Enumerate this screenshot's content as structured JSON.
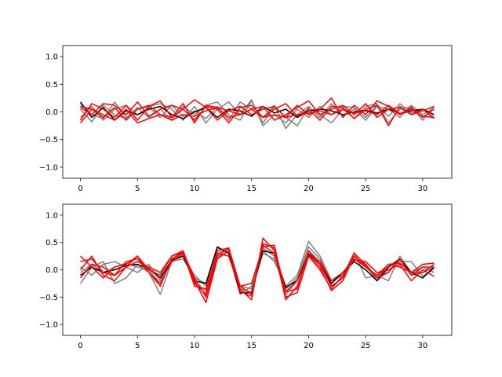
{
  "chart_data": [
    {
      "type": "line",
      "title": "",
      "xlabel": "",
      "ylabel": "",
      "xlim": [
        -1.55,
        32.55
      ],
      "ylim": [
        -1.2,
        1.2
      ],
      "xticks": [
        0,
        5,
        10,
        15,
        20,
        25,
        30
      ],
      "yticks": [
        -1.0,
        -0.5,
        0.0,
        0.5,
        1.0
      ],
      "xtick_labels": [
        "0",
        "5",
        "10",
        "15",
        "20",
        "25",
        "30"
      ],
      "ytick_labels": [
        "−1.0",
        "−0.5",
        "0.0",
        "0.5",
        "1.0"
      ],
      "grid": false,
      "x": [
        0,
        1,
        2,
        3,
        4,
        5,
        6,
        7,
        8,
        9,
        10,
        11,
        12,
        13,
        14,
        15,
        16,
        17,
        18,
        19,
        20,
        21,
        22,
        23,
        24,
        25,
        26,
        27,
        28,
        29,
        30,
        31
      ],
      "series": [
        {
          "color": "#808080",
          "values": [
            0.15,
            -0.05,
            -0.12,
            0.18,
            -0.1,
            0.05,
            0.1,
            0.15,
            0.05,
            -0.15,
            0.1,
            -0.2,
            0.05,
            0.18,
            -0.05,
            0.22,
            -0.25,
            -0.05,
            -0.2,
            0.05,
            -0.1,
            0.1,
            -0.05,
            0.1,
            0.08,
            -0.1,
            0.12,
            -0.08,
            0.15,
            -0.02,
            0.05,
            -0.1
          ]
        },
        {
          "color": "#808080",
          "values": [
            -0.1,
            0.1,
            -0.15,
            0.05,
            0.12,
            -0.05,
            0.08,
            -0.1,
            0.12,
            -0.08,
            0.02,
            -0.12,
            0.1,
            -0.15,
            0.18,
            0.05,
            -0.1,
            0.12,
            -0.3,
            -0.05,
            0.1,
            -0.1,
            0.15,
            -0.08,
            0.05,
            -0.15,
            0.1,
            0.05,
            -0.1,
            0.12,
            -0.05,
            0.08
          ]
        },
        {
          "color": "#808080",
          "values": [
            0.05,
            -0.18,
            0.12,
            -0.05,
            -0.12,
            0.08,
            -0.1,
            0.05,
            -0.15,
            0.1,
            -0.05,
            0.12,
            0.18,
            -0.05,
            -0.15,
            0.2,
            -0.2,
            0.1,
            -0.1,
            -0.25,
            0.08,
            -0.05,
            -0.2,
            0.05,
            -0.12,
            0.1,
            0.15,
            -0.2,
            0.05,
            0.1,
            -0.15,
            0.1
          ]
        },
        {
          "color": "#000000",
          "values": [
            0.18,
            -0.1,
            0.08,
            -0.15,
            0.02,
            -0.05,
            0.05,
            0.1,
            -0.05,
            -0.12,
            0.0,
            0.08,
            -0.1,
            0.05,
            0.02,
            -0.08,
            0.1,
            -0.02,
            0.05,
            -0.1,
            0.02,
            0.05,
            0.02,
            -0.05,
            0.0,
            0.03,
            -0.02,
            0.05,
            -0.03,
            0.02,
            0.05,
            -0.05
          ]
        },
        {
          "color": "#ff0000",
          "values": [
            -0.15,
            0.15,
            0.05,
            -0.1,
            0.12,
            -0.15,
            0.1,
            0.2,
            -0.1,
            0.05,
            0.22,
            0.08,
            -0.15,
            0.02,
            0.1,
            -0.05,
            0.05,
            0.1,
            -0.1,
            0.12,
            -0.05,
            0.05,
            0.25,
            -0.1,
            0.12,
            -0.05,
            0.2,
            0.1,
            -0.05,
            0.08,
            -0.1,
            0.05
          ]
        },
        {
          "color": "#ff0000",
          "values": [
            0.08,
            -0.05,
            0.15,
            0.12,
            -0.05,
            0.18,
            -0.08,
            0.05,
            0.12,
            0.05,
            -0.15,
            0.1,
            0.05,
            -0.2,
            0.08,
            0.12,
            -0.1,
            0.05,
            0.15,
            -0.08,
            0.05,
            -0.15,
            0.1,
            0.08,
            -0.12,
            0.05,
            0.12,
            -0.25,
            0.1,
            -0.05,
            0.05,
            -0.12
          ]
        },
        {
          "color": "#ff0000",
          "values": [
            -0.2,
            0.05,
            -0.1,
            0.08,
            -0.15,
            0.05,
            0.12,
            -0.05,
            -0.1,
            0.15,
            -0.2,
            0.12,
            0.08,
            -0.1,
            -0.05,
            0.05,
            0.1,
            -0.15,
            -0.05,
            0.08,
            0.2,
            -0.05,
            0.05,
            0.12,
            -0.05,
            0.15,
            -0.1,
            0.05,
            0.08,
            -0.05,
            0.02,
            0.1
          ]
        },
        {
          "color": "#ff0000",
          "values": [
            0.1,
            0.05,
            -0.05,
            -0.15,
            0.05,
            -0.2,
            -0.12,
            -0.05,
            -0.15,
            -0.05,
            -0.08,
            0.02,
            0.08,
            0.02,
            -0.05,
            0.05,
            -0.1,
            -0.05,
            -0.1,
            -0.05,
            -0.02,
            0.02,
            -0.05,
            0.05,
            -0.02,
            0.02,
            -0.05,
            0.12,
            -0.03,
            0.05,
            -0.08,
            -0.1
          ]
        }
      ]
    },
    {
      "type": "line",
      "title": "",
      "xlabel": "",
      "ylabel": "",
      "xlim": [
        -1.55,
        32.55
      ],
      "ylim": [
        -1.2,
        1.2
      ],
      "xticks": [
        0,
        5,
        10,
        15,
        20,
        25,
        30
      ],
      "yticks": [
        -1.0,
        -0.5,
        0.0,
        0.5,
        1.0
      ],
      "xtick_labels": [
        "0",
        "5",
        "10",
        "15",
        "20",
        "25",
        "30"
      ],
      "ytick_labels": [
        "−1.0",
        "−0.5",
        "0.0",
        "0.5",
        "1.0"
      ],
      "grid": false,
      "x": [
        0,
        1,
        2,
        3,
        4,
        5,
        6,
        7,
        8,
        9,
        10,
        11,
        12,
        13,
        14,
        15,
        16,
        17,
        18,
        19,
        20,
        21,
        22,
        23,
        24,
        25,
        26,
        27,
        28,
        29,
        30,
        31
      ],
      "series": [
        {
          "color": "#808080",
          "values": [
            -0.25,
            0.05,
            0.15,
            -0.25,
            -0.15,
            0.1,
            -0.05,
            -0.45,
            0.15,
            0.25,
            -0.1,
            -0.3,
            0.4,
            0.3,
            -0.45,
            -0.3,
            0.35,
            0.15,
            -0.3,
            -0.1,
            0.52,
            0.25,
            -0.2,
            -0.1,
            0.32,
            -0.15,
            -0.1,
            -0.2,
            0.25,
            -0.05,
            0.05,
            -0.05
          ]
        },
        {
          "color": "#808080",
          "values": [
            0.05,
            -0.1,
            0.1,
            0.15,
            0.05,
            -0.05,
            0.1,
            -0.2,
            0.2,
            0.28,
            -0.2,
            -0.4,
            0.3,
            0.38,
            -0.35,
            -0.4,
            0.4,
            0.25,
            -0.45,
            -0.2,
            0.35,
            0.15,
            -0.3,
            -0.15,
            0.25,
            0.05,
            -0.15,
            0.05,
            0.18,
            -0.1,
            -0.05,
            0.05
          ]
        },
        {
          "color": "#808080",
          "values": [
            -0.05,
            0.1,
            -0.05,
            0.05,
            0.12,
            0.05,
            0.0,
            -0.25,
            0.15,
            0.2,
            -0.15,
            -0.25,
            0.22,
            0.35,
            -0.3,
            -0.35,
            0.3,
            0.2,
            -0.35,
            -0.15,
            0.42,
            0.2,
            -0.25,
            -0.05,
            0.2,
            0.08,
            -0.2,
            0.0,
            0.15,
            0.15,
            -0.12,
            0.02
          ]
        },
        {
          "color": "#000000",
          "values": [
            -0.1,
            0.05,
            -0.05,
            0.0,
            0.08,
            0.1,
            0.02,
            -0.15,
            0.18,
            0.25,
            -0.2,
            -0.25,
            0.42,
            0.3,
            -0.42,
            -0.42,
            0.35,
            0.3,
            -0.32,
            -0.2,
            0.3,
            0.1,
            -0.25,
            -0.05,
            0.15,
            0.0,
            -0.2,
            0.05,
            0.2,
            -0.05,
            -0.15,
            0.05
          ]
        },
        {
          "color": "#ff0000",
          "values": [
            0.25,
            0.05,
            -0.15,
            0.05,
            0.1,
            0.25,
            -0.05,
            -0.3,
            0.2,
            0.32,
            -0.3,
            -0.35,
            0.3,
            0.25,
            -0.35,
            -0.55,
            0.58,
            0.35,
            -0.55,
            -0.3,
            0.28,
            0.05,
            -0.38,
            -0.2,
            0.25,
            0.08,
            -0.15,
            0.1,
            0.12,
            -0.05,
            0.1,
            0.12
          ]
        },
        {
          "color": "#ff0000",
          "values": [
            0.15,
            0.2,
            -0.05,
            -0.1,
            0.05,
            0.25,
            0.0,
            -0.1,
            0.25,
            0.35,
            -0.2,
            -0.6,
            0.2,
            0.35,
            -0.3,
            -0.25,
            0.42,
            0.45,
            -0.5,
            -0.42,
            0.25,
            0.0,
            -0.35,
            -0.1,
            0.18,
            0.15,
            -0.05,
            0.0,
            0.1,
            -0.2,
            0.0,
            -0.12
          ]
        },
        {
          "color": "#ff0000",
          "values": [
            -0.15,
            0.1,
            0.05,
            -0.1,
            0.15,
            0.2,
            -0.05,
            -0.25,
            0.15,
            0.3,
            -0.25,
            -0.45,
            0.35,
            0.4,
            -0.4,
            -0.48,
            0.48,
            0.4,
            -0.4,
            -0.35,
            0.35,
            0.1,
            -0.3,
            -0.15,
            0.3,
            0.1,
            -0.15,
            -0.05,
            0.2,
            -0.1,
            0.05,
            0.05
          ]
        },
        {
          "color": "#ff0000",
          "values": [
            0.0,
            0.25,
            -0.1,
            -0.2,
            0.05,
            0.15,
            0.05,
            -0.05,
            0.25,
            0.32,
            -0.15,
            -0.5,
            0.25,
            0.4,
            -0.3,
            -0.45,
            0.45,
            0.3,
            -0.4,
            -0.2,
            0.25,
            0.15,
            -0.2,
            -0.05,
            0.2,
            0.05,
            -0.1,
            0.1,
            0.05,
            -0.05,
            -0.05,
            0.1
          ]
        }
      ]
    }
  ]
}
